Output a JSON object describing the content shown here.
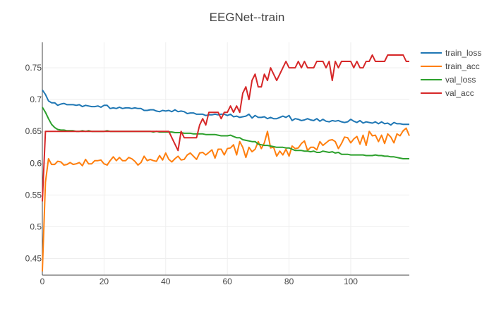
{
  "chart_data": {
    "type": "line",
    "title": "EEGNet--train",
    "xlabel": "",
    "ylabel": "",
    "xlim": [
      0,
      119
    ],
    "ylim": [
      0.424,
      0.79
    ],
    "xticks": [
      0,
      20,
      40,
      60,
      80,
      100
    ],
    "yticks": [
      0.45,
      0.5,
      0.55,
      0.6,
      0.65,
      0.7,
      0.75
    ],
    "ytick_labels": [
      "0.45",
      "0.5",
      "0.55",
      "0.6",
      "0.65",
      "0.7",
      "0.75"
    ],
    "grid": true,
    "legend_position": "top-right",
    "x": [
      0,
      1,
      2,
      3,
      4,
      5,
      6,
      7,
      8,
      9,
      10,
      11,
      12,
      13,
      14,
      15,
      16,
      17,
      18,
      19,
      20,
      21,
      22,
      23,
      24,
      25,
      26,
      27,
      28,
      29,
      30,
      31,
      32,
      33,
      34,
      35,
      36,
      37,
      38,
      39,
      40,
      41,
      42,
      43,
      44,
      45,
      46,
      47,
      48,
      49,
      50,
      51,
      52,
      53,
      54,
      55,
      56,
      57,
      58,
      59,
      60,
      61,
      62,
      63,
      64,
      65,
      66,
      67,
      68,
      69,
      70,
      71,
      72,
      73,
      74,
      75,
      76,
      77,
      78,
      79,
      80,
      81,
      82,
      83,
      84,
      85,
      86,
      87,
      88,
      89,
      90,
      91,
      92,
      93,
      94,
      95,
      96,
      97,
      98,
      99,
      100,
      101,
      102,
      103,
      104,
      105,
      106,
      107,
      108,
      109,
      110,
      111,
      112,
      113,
      114,
      115,
      116,
      117,
      118,
      119
    ],
    "series": [
      {
        "name": "train_loss",
        "color": "#1f77b4",
        "values": [
          0.715,
          0.708,
          0.698,
          0.695,
          0.695,
          0.691,
          0.693,
          0.694,
          0.692,
          0.692,
          0.692,
          0.691,
          0.692,
          0.689,
          0.691,
          0.69,
          0.689,
          0.689,
          0.69,
          0.688,
          0.691,
          0.691,
          0.686,
          0.687,
          0.686,
          0.688,
          0.686,
          0.687,
          0.687,
          0.686,
          0.687,
          0.686,
          0.686,
          0.683,
          0.683,
          0.684,
          0.684,
          0.682,
          0.681,
          0.683,
          0.682,
          0.683,
          0.681,
          0.684,
          0.681,
          0.682,
          0.681,
          0.678,
          0.679,
          0.679,
          0.677,
          0.677,
          0.677,
          0.675,
          0.676,
          0.676,
          0.677,
          0.676,
          0.677,
          0.677,
          0.675,
          0.677,
          0.673,
          0.674,
          0.672,
          0.673,
          0.674,
          0.677,
          0.671,
          0.675,
          0.672,
          0.672,
          0.673,
          0.67,
          0.672,
          0.67,
          0.67,
          0.672,
          0.674,
          0.672,
          0.675,
          0.667,
          0.67,
          0.669,
          0.667,
          0.668,
          0.67,
          0.668,
          0.667,
          0.67,
          0.666,
          0.669,
          0.666,
          0.665,
          0.667,
          0.666,
          0.667,
          0.665,
          0.664,
          0.665,
          0.669,
          0.666,
          0.664,
          0.667,
          0.663,
          0.665,
          0.664,
          0.663,
          0.665,
          0.662,
          0.665,
          0.662,
          0.663,
          0.66,
          0.664,
          0.662,
          0.662,
          0.661,
          0.661,
          0.661
        ]
      },
      {
        "name": "train_acc",
        "color": "#ff7f0e",
        "values": [
          0.43,
          0.57,
          0.607,
          0.598,
          0.598,
          0.603,
          0.602,
          0.597,
          0.598,
          0.601,
          0.598,
          0.599,
          0.601,
          0.596,
          0.606,
          0.599,
          0.599,
          0.604,
          0.604,
          0.605,
          0.599,
          0.597,
          0.604,
          0.61,
          0.604,
          0.609,
          0.604,
          0.604,
          0.609,
          0.607,
          0.603,
          0.597,
          0.601,
          0.611,
          0.604,
          0.606,
          0.604,
          0.603,
          0.612,
          0.605,
          0.616,
          0.606,
          0.602,
          0.607,
          0.611,
          0.605,
          0.606,
          0.613,
          0.616,
          0.611,
          0.606,
          0.616,
          0.617,
          0.613,
          0.617,
          0.621,
          0.608,
          0.622,
          0.622,
          0.613,
          0.623,
          0.624,
          0.629,
          0.613,
          0.634,
          0.625,
          0.609,
          0.625,
          0.618,
          0.622,
          0.634,
          0.623,
          0.632,
          0.65,
          0.624,
          0.625,
          0.611,
          0.619,
          0.613,
          0.622,
          0.611,
          0.627,
          0.623,
          0.624,
          0.631,
          0.635,
          0.62,
          0.625,
          0.625,
          0.621,
          0.634,
          0.628,
          0.632,
          0.636,
          0.637,
          0.634,
          0.623,
          0.631,
          0.641,
          0.64,
          0.632,
          0.638,
          0.642,
          0.63,
          0.644,
          0.628,
          0.65,
          0.643,
          0.644,
          0.634,
          0.644,
          0.631,
          0.646,
          0.641,
          0.632,
          0.646,
          0.643,
          0.651,
          0.655,
          0.643
        ]
      },
      {
        "name": "val_loss",
        "color": "#2ca02c",
        "values": [
          0.688,
          0.68,
          0.67,
          0.661,
          0.656,
          0.653,
          0.652,
          0.652,
          0.651,
          0.651,
          0.651,
          0.65,
          0.65,
          0.651,
          0.65,
          0.651,
          0.65,
          0.65,
          0.65,
          0.65,
          0.65,
          0.651,
          0.65,
          0.65,
          0.65,
          0.65,
          0.65,
          0.65,
          0.65,
          0.65,
          0.65,
          0.65,
          0.65,
          0.65,
          0.65,
          0.65,
          0.649,
          0.65,
          0.649,
          0.649,
          0.649,
          0.649,
          0.649,
          0.648,
          0.648,
          0.648,
          0.647,
          0.647,
          0.647,
          0.646,
          0.646,
          0.646,
          0.646,
          0.645,
          0.645,
          0.645,
          0.645,
          0.644,
          0.643,
          0.643,
          0.643,
          0.644,
          0.642,
          0.64,
          0.64,
          0.637,
          0.636,
          0.635,
          0.634,
          0.634,
          0.63,
          0.629,
          0.628,
          0.628,
          0.627,
          0.626,
          0.625,
          0.625,
          0.625,
          0.624,
          0.624,
          0.622,
          0.62,
          0.62,
          0.62,
          0.619,
          0.619,
          0.618,
          0.619,
          0.617,
          0.617,
          0.619,
          0.618,
          0.617,
          0.618,
          0.616,
          0.617,
          0.614,
          0.614,
          0.614,
          0.613,
          0.613,
          0.613,
          0.613,
          0.613,
          0.612,
          0.612,
          0.612,
          0.613,
          0.612,
          0.612,
          0.611,
          0.611,
          0.61,
          0.61,
          0.609,
          0.608,
          0.607,
          0.607,
          0.607
        ]
      },
      {
        "name": "val_acc",
        "color": "#d62728",
        "values": [
          0.54,
          0.65,
          0.65,
          0.65,
          0.65,
          0.65,
          0.65,
          0.65,
          0.65,
          0.65,
          0.65,
          0.65,
          0.65,
          0.65,
          0.65,
          0.65,
          0.65,
          0.65,
          0.65,
          0.65,
          0.65,
          0.65,
          0.65,
          0.65,
          0.65,
          0.65,
          0.65,
          0.65,
          0.65,
          0.65,
          0.65,
          0.65,
          0.65,
          0.65,
          0.65,
          0.65,
          0.65,
          0.65,
          0.65,
          0.65,
          0.65,
          0.65,
          0.64,
          0.63,
          0.62,
          0.65,
          0.64,
          0.64,
          0.64,
          0.64,
          0.64,
          0.66,
          0.67,
          0.66,
          0.68,
          0.68,
          0.68,
          0.68,
          0.67,
          0.68,
          0.68,
          0.69,
          0.68,
          0.69,
          0.68,
          0.71,
          0.72,
          0.7,
          0.73,
          0.74,
          0.72,
          0.72,
          0.74,
          0.73,
          0.75,
          0.74,
          0.73,
          0.74,
          0.75,
          0.76,
          0.75,
          0.75,
          0.75,
          0.76,
          0.75,
          0.76,
          0.75,
          0.75,
          0.75,
          0.76,
          0.76,
          0.76,
          0.75,
          0.76,
          0.73,
          0.76,
          0.75,
          0.76,
          0.76,
          0.76,
          0.76,
          0.75,
          0.76,
          0.75,
          0.75,
          0.76,
          0.76,
          0.77,
          0.76,
          0.76,
          0.76,
          0.76,
          0.77,
          0.77,
          0.77,
          0.77,
          0.77,
          0.77,
          0.76,
          0.76
        ]
      }
    ]
  }
}
